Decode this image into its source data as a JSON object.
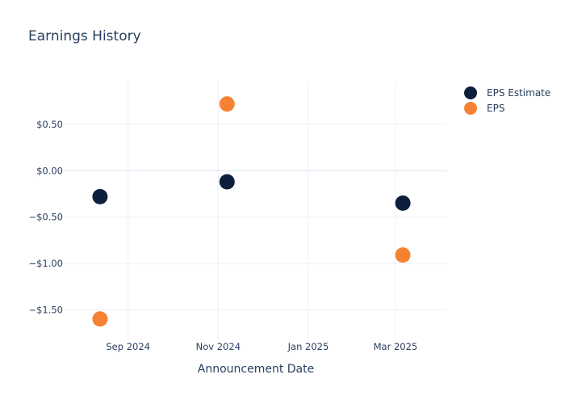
{
  "chart_data": {
    "type": "scatter",
    "title": "Earnings History",
    "xlabel": "Announcement Date",
    "ylabel": "",
    "x_type": "date",
    "xlim": [
      "2024-07-20",
      "2025-04-05"
    ],
    "ylim": [
      -1.82,
      0.97
    ],
    "x_ticks": [
      {
        "value": "2024-09-01",
        "label": "Sep 2024"
      },
      {
        "value": "2024-11-01",
        "label": "Nov 2024"
      },
      {
        "value": "2025-01-01",
        "label": "Jan 2025"
      },
      {
        "value": "2025-03-01",
        "label": "Mar 2025"
      }
    ],
    "y_ticks": [
      {
        "value": 0.5,
        "label": "$0.50"
      },
      {
        "value": 0.0,
        "label": "$0.00"
      },
      {
        "value": -0.5,
        "label": "−$0.50"
      },
      {
        "value": -1.0,
        "label": "−$1.00"
      },
      {
        "value": -1.5,
        "label": "−$1.50"
      }
    ],
    "grid": true,
    "legend_position": "top-right",
    "series": [
      {
        "name": "EPS Estimate",
        "color": "#0d1f3c",
        "points": [
          {
            "x": "2024-08-13",
            "y": -0.28
          },
          {
            "x": "2024-11-07",
            "y": -0.12
          },
          {
            "x": "2025-03-06",
            "y": -0.35
          }
        ]
      },
      {
        "name": "EPS",
        "color": "#f58233",
        "points": [
          {
            "x": "2024-08-13",
            "y": -1.6
          },
          {
            "x": "2024-11-07",
            "y": 0.72
          },
          {
            "x": "2025-03-06",
            "y": -0.91
          }
        ]
      }
    ]
  }
}
